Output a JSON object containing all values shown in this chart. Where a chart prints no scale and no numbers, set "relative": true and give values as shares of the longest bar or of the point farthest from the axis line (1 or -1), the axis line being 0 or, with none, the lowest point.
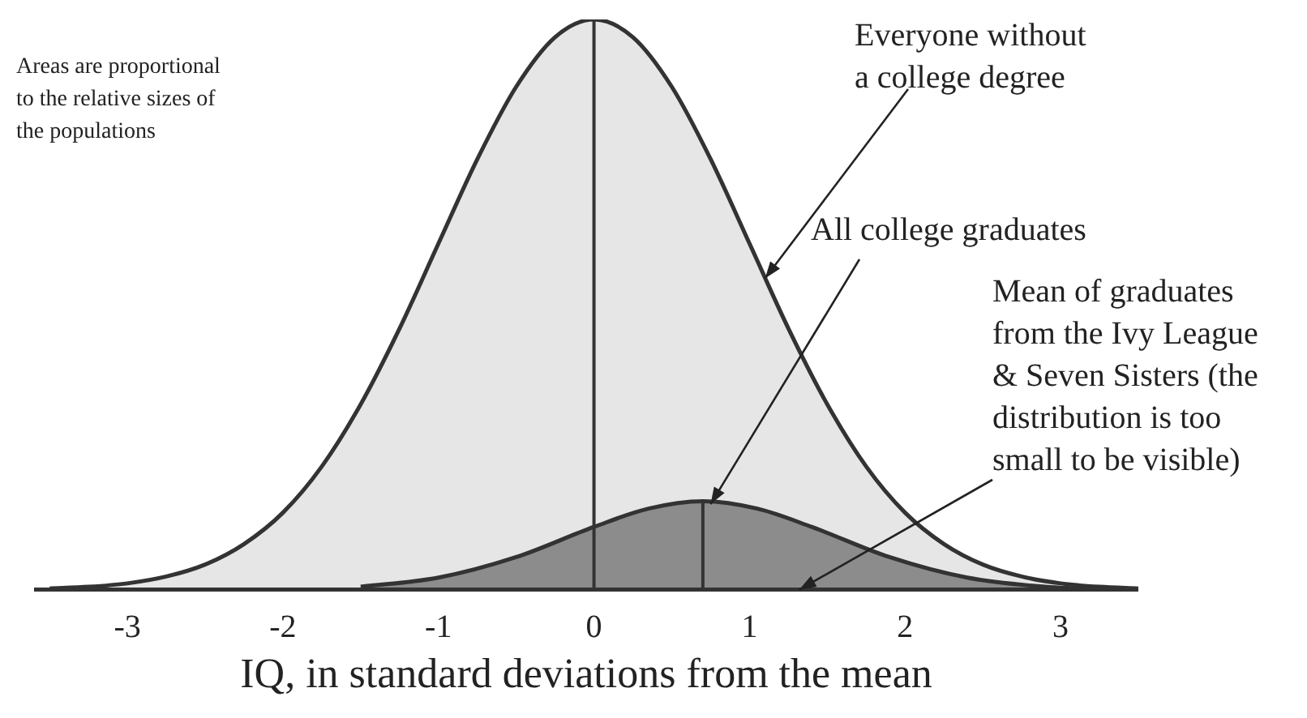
{
  "chart_data": {
    "type": "area",
    "relative": true,
    "xlabel": "IQ, in standard deviations from the mean",
    "xlim": [
      -3.6,
      3.5
    ],
    "xticks": [
      -3,
      -2,
      -1,
      0,
      1,
      2,
      3
    ],
    "grid": false,
    "legend": false,
    "tick_labels": "x",
    "series": [
      {
        "color": "#e6e6e6",
        "x": [
          -3.5,
          -3.25,
          -3,
          -2.75,
          -2.5,
          -2.25,
          -2,
          -1.75,
          -1.5,
          -1.25,
          -1,
          -0.75,
          -0.5,
          -0.25,
          0,
          0.25,
          0.5,
          0.75,
          1,
          1.25,
          1.5,
          1.75,
          2,
          2.25,
          2.5,
          2.75,
          3,
          3.25,
          3.5
        ],
        "values": [
          0.002,
          0.005,
          0.011,
          0.023,
          0.044,
          0.08,
          0.135,
          0.216,
          0.325,
          0.458,
          0.607,
          0.755,
          0.882,
          0.969,
          1,
          0.969,
          0.882,
          0.755,
          0.607,
          0.458,
          0.325,
          0.216,
          0.135,
          0.08,
          0.044,
          0.023,
          0.011,
          0.005,
          0.002
        ]
      },
      {
        "color": "#8c8c8c",
        "x": [
          -1.5,
          -1,
          -0.5,
          0,
          0.35,
          0.7,
          1.05,
          1.4,
          1.9,
          2.4,
          2.9,
          3.4
        ],
        "values": [
          0.005,
          0.021,
          0.057,
          0.11,
          0.142,
          0.155,
          0.142,
          0.11,
          0.057,
          0.021,
          0.005,
          0
        ]
      }
    ],
    "ref_lines": [
      {
        "axis": "x",
        "value": 0,
        "color": "#333333"
      },
      {
        "axis": "x",
        "value": 0.7,
        "color": "#333333"
      }
    ],
    "annotations": [
      "Areas are proportional\nto the relative sizes of\nthe populations",
      {
        "text": "Everyone without\na college degree",
        "x": 1.1,
        "y": 0.546
      },
      {
        "text": "All college graduates",
        "x": 0.75,
        "y": 0.15
      },
      {
        "text": "Mean of graduates\nfrom the Ivy League\n& Seven Sisters (the\ndistribution is too\nsmall to be visible)",
        "x": 1.32,
        "y": 0
      }
    ]
  }
}
